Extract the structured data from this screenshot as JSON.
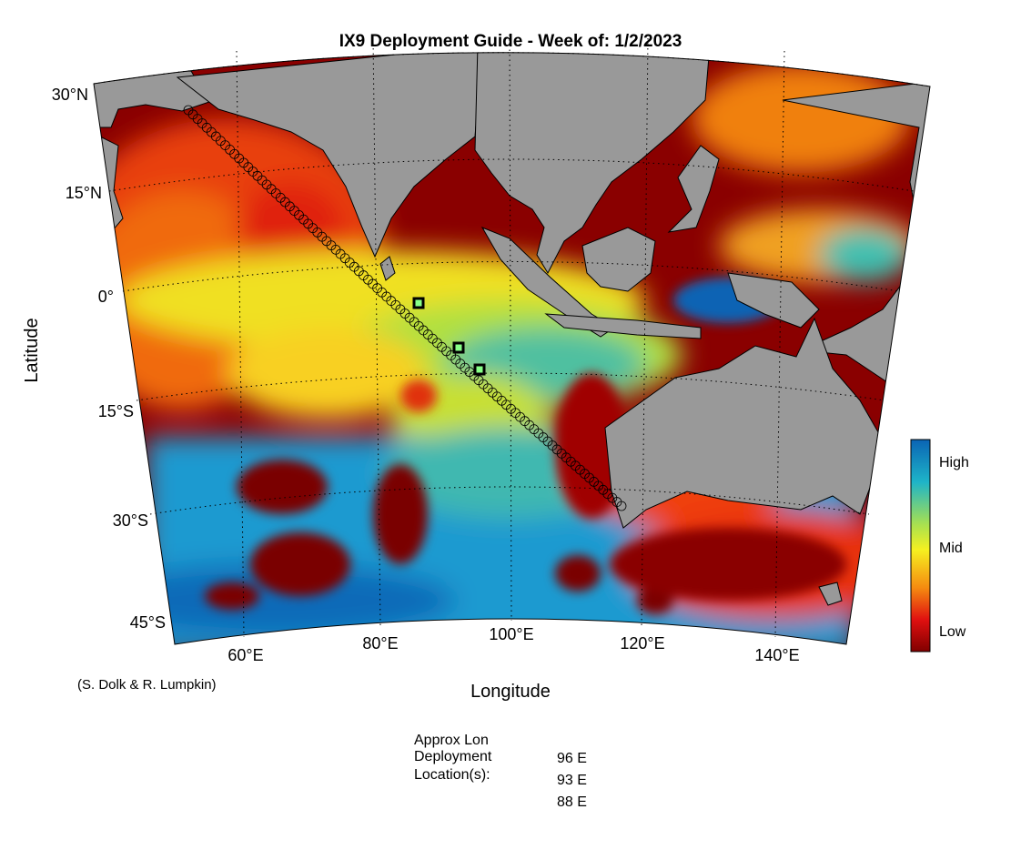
{
  "title": "IX9 Deployment Guide - Week of: 1/2/2023",
  "map": {
    "lat_labels": [
      "30°N",
      "15°N",
      "0°",
      "15°S",
      "30°S",
      "45°S"
    ],
    "lon_labels": [
      "60°E",
      "80°E",
      "100°E",
      "120°E",
      "140°E"
    ],
    "y_axis_label": "Latitude",
    "x_axis_label": "Longitude"
  },
  "colorbar": {
    "labels": [
      "High",
      "Mid",
      "Low"
    ]
  },
  "credit": "(S. Dolk & R. Lumpkin)",
  "deployment": {
    "heading": [
      "Approx Lon",
      "Deployment",
      "Location(s):"
    ],
    "locations": [
      "96 E",
      "93 E",
      "88 E"
    ]
  }
}
